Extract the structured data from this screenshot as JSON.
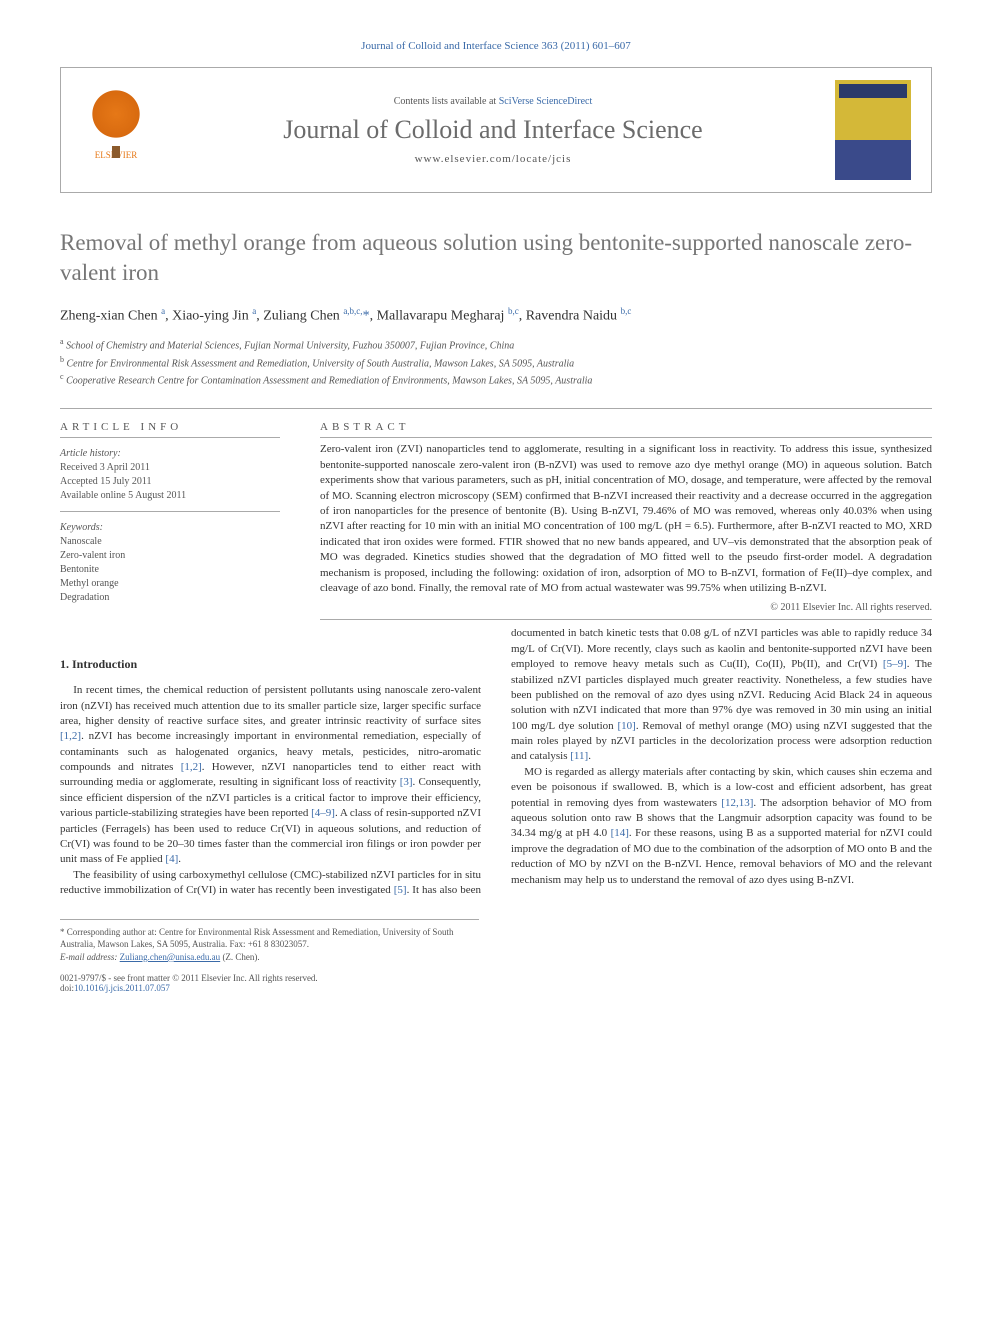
{
  "journal_ref": "Journal of Colloid and Interface Science 363 (2011) 601–607",
  "header": {
    "contents_prefix": "Contents lists available at ",
    "contents_link": "SciVerse ScienceDirect",
    "journal_name": "Journal of Colloid and Interface Science",
    "journal_url": "www.elsevier.com/locate/jcis",
    "publisher_label": "ELSEVIER"
  },
  "title": "Removal of methyl orange from aqueous solution using bentonite-supported nanoscale zero-valent iron",
  "authors_html": "Zheng-xian Chen <sup>a</sup>, Xiao-ying Jin <sup>a</sup>, Zuliang Chen <sup>a,b,c,</sup><span class='corr'>*</span>, Mallavarapu Megharaj <sup>b,c</sup>, Ravendra Naidu <sup>b,c</sup>",
  "affiliations": {
    "a": "School of Chemistry and Material Sciences, Fujian Normal University, Fuzhou 350007, Fujian Province, China",
    "b": "Centre for Environmental Risk Assessment and Remediation, University of South Australia, Mawson Lakes, SA 5095, Australia",
    "c": "Cooperative Research Centre for Contamination Assessment and Remediation of Environments, Mawson Lakes, SA 5095, Australia"
  },
  "article_info": {
    "heading": "ARTICLE INFO",
    "history_label": "Article history:",
    "received": "Received 3 April 2011",
    "accepted": "Accepted 15 July 2011",
    "online": "Available online 5 August 2011",
    "keywords_label": "Keywords:",
    "keywords": [
      "Nanoscale",
      "Zero-valent iron",
      "Bentonite",
      "Methyl orange",
      "Degradation"
    ]
  },
  "abstract": {
    "heading": "ABSTRACT",
    "text": "Zero-valent iron (ZVI) nanoparticles tend to agglomerate, resulting in a significant loss in reactivity. To address this issue, synthesized bentonite-supported nanoscale zero-valent iron (B-nZVI) was used to remove azo dye methyl orange (MO) in aqueous solution. Batch experiments show that various parameters, such as pH, initial concentration of MO, dosage, and temperature, were affected by the removal of MO. Scanning electron microscopy (SEM) confirmed that B-nZVI increased their reactivity and a decrease occurred in the aggregation of iron nanoparticles for the presence of bentonite (B). Using B-nZVI, 79.46% of MO was removed, whereas only 40.03% when using nZVI after reacting for 10 min with an initial MO concentration of 100 mg/L (pH = 6.5). Furthermore, after B-nZVI reacted to MO, XRD indicated that iron oxides were formed. FTIR showed that no new bands appeared, and UV–vis demonstrated that the absorption peak of MO was degraded. Kinetics studies showed that the degradation of MO fitted well to the pseudo first-order model. A degradation mechanism is proposed, including the following: oxidation of iron, adsorption of MO to B-nZVI, formation of Fe(II)–dye complex, and cleavage of azo bond. Finally, the removal rate of MO from actual wastewater was 99.75% when utilizing B-nZVI.",
    "copyright": "© 2011 Elsevier Inc. All rights reserved."
  },
  "intro": {
    "heading": "1. Introduction",
    "p1": "In recent times, the chemical reduction of persistent pollutants using nanoscale zero-valent iron (nZVI) has received much attention due to its smaller particle size, larger specific surface area, higher density of reactive surface sites, and greater intrinsic reactivity of surface sites [1,2]. nZVI has become increasingly important in environmental remediation, especially of contaminants such as halogenated organics, heavy metals, pesticides, nitro-aromatic compounds and nitrates [1,2]. However, nZVI nanoparticles tend to either react with surrounding media or agglomerate, resulting in significant loss of reactivity [3]. Consequently, since efficient dispersion of the nZVI particles is a critical factor to improve their efficiency, various particle-stabilizing strategies have been reported [4–9]. A class of resin-supported nZVI particles (Ferragels) has been used to reduce Cr(VI) in aqueous solutions, and reduction of Cr(VI) was found to be 20–30 times faster than the commercial iron filings or iron powder per unit mass of Fe applied [4].",
    "p2": "The feasibility of using carboxymethyl cellulose (CMC)-stabilized nZVI particles for in situ reductive immobilization of Cr(VI) in water has recently been investigated [5]. It has also been documented in batch kinetic tests that 0.08 g/L of nZVI particles was able to rapidly reduce 34 mg/L of Cr(VI). More recently, clays such as kaolin and bentonite-supported nZVI have been employed to remove heavy metals such as Cu(II), Co(II), Pb(II), and Cr(VI) [5–9]. The stabilized nZVI particles displayed much greater reactivity. Nonetheless, a few studies have been published on the removal of azo dyes using nZVI. Reducing Acid Black 24 in aqueous solution with nZVI indicated that more than 97% dye was removed in 30 min using an initial 100 mg/L dye solution [10]. Removal of methyl orange (MO) using nZVI suggested that the main roles played by nZVI particles in the decolorization process were adsorption reduction and catalysis [11].",
    "p3": "MO is regarded as allergy materials after contacting by skin, which causes shin eczema and even be poisonous if swallowed. B, which is a low-cost and efficient adsorbent, has great potential in removing dyes from wastewaters [12,13]. The adsorption behavior of MO from aqueous solution onto raw B shows that the Langmuir adsorption capacity was found to be 34.34 mg/g at pH 4.0 [14]. For these reasons, using B as a supported material for nZVI could improve the degradation of MO due to the combination of the adsorption of MO onto B and the reduction of MO by nZVI on the B-nZVI. Hence, removal behaviors of MO and the relevant mechanism may help us to understand the removal of azo dyes using B-nZVI."
  },
  "footnote": {
    "corr": "* Corresponding author at: Centre for Environmental Risk Assessment and Remediation, University of South Australia, Mawson Lakes, SA 5095, Australia. Fax: +61 8 83023057.",
    "email_label": "E-mail address: ",
    "email": "Zuliang.chen@unisa.edu.au",
    "email_suffix": " (Z. Chen)."
  },
  "footer": {
    "line1": "0021-9797/$ - see front matter © 2011 Elsevier Inc. All rights reserved.",
    "doi_prefix": "doi:",
    "doi": "10.1016/j.jcis.2011.07.057"
  },
  "colors": {
    "link": "#3a6aa8",
    "title_gray": "#767676",
    "publisher_orange": "#e67817"
  }
}
